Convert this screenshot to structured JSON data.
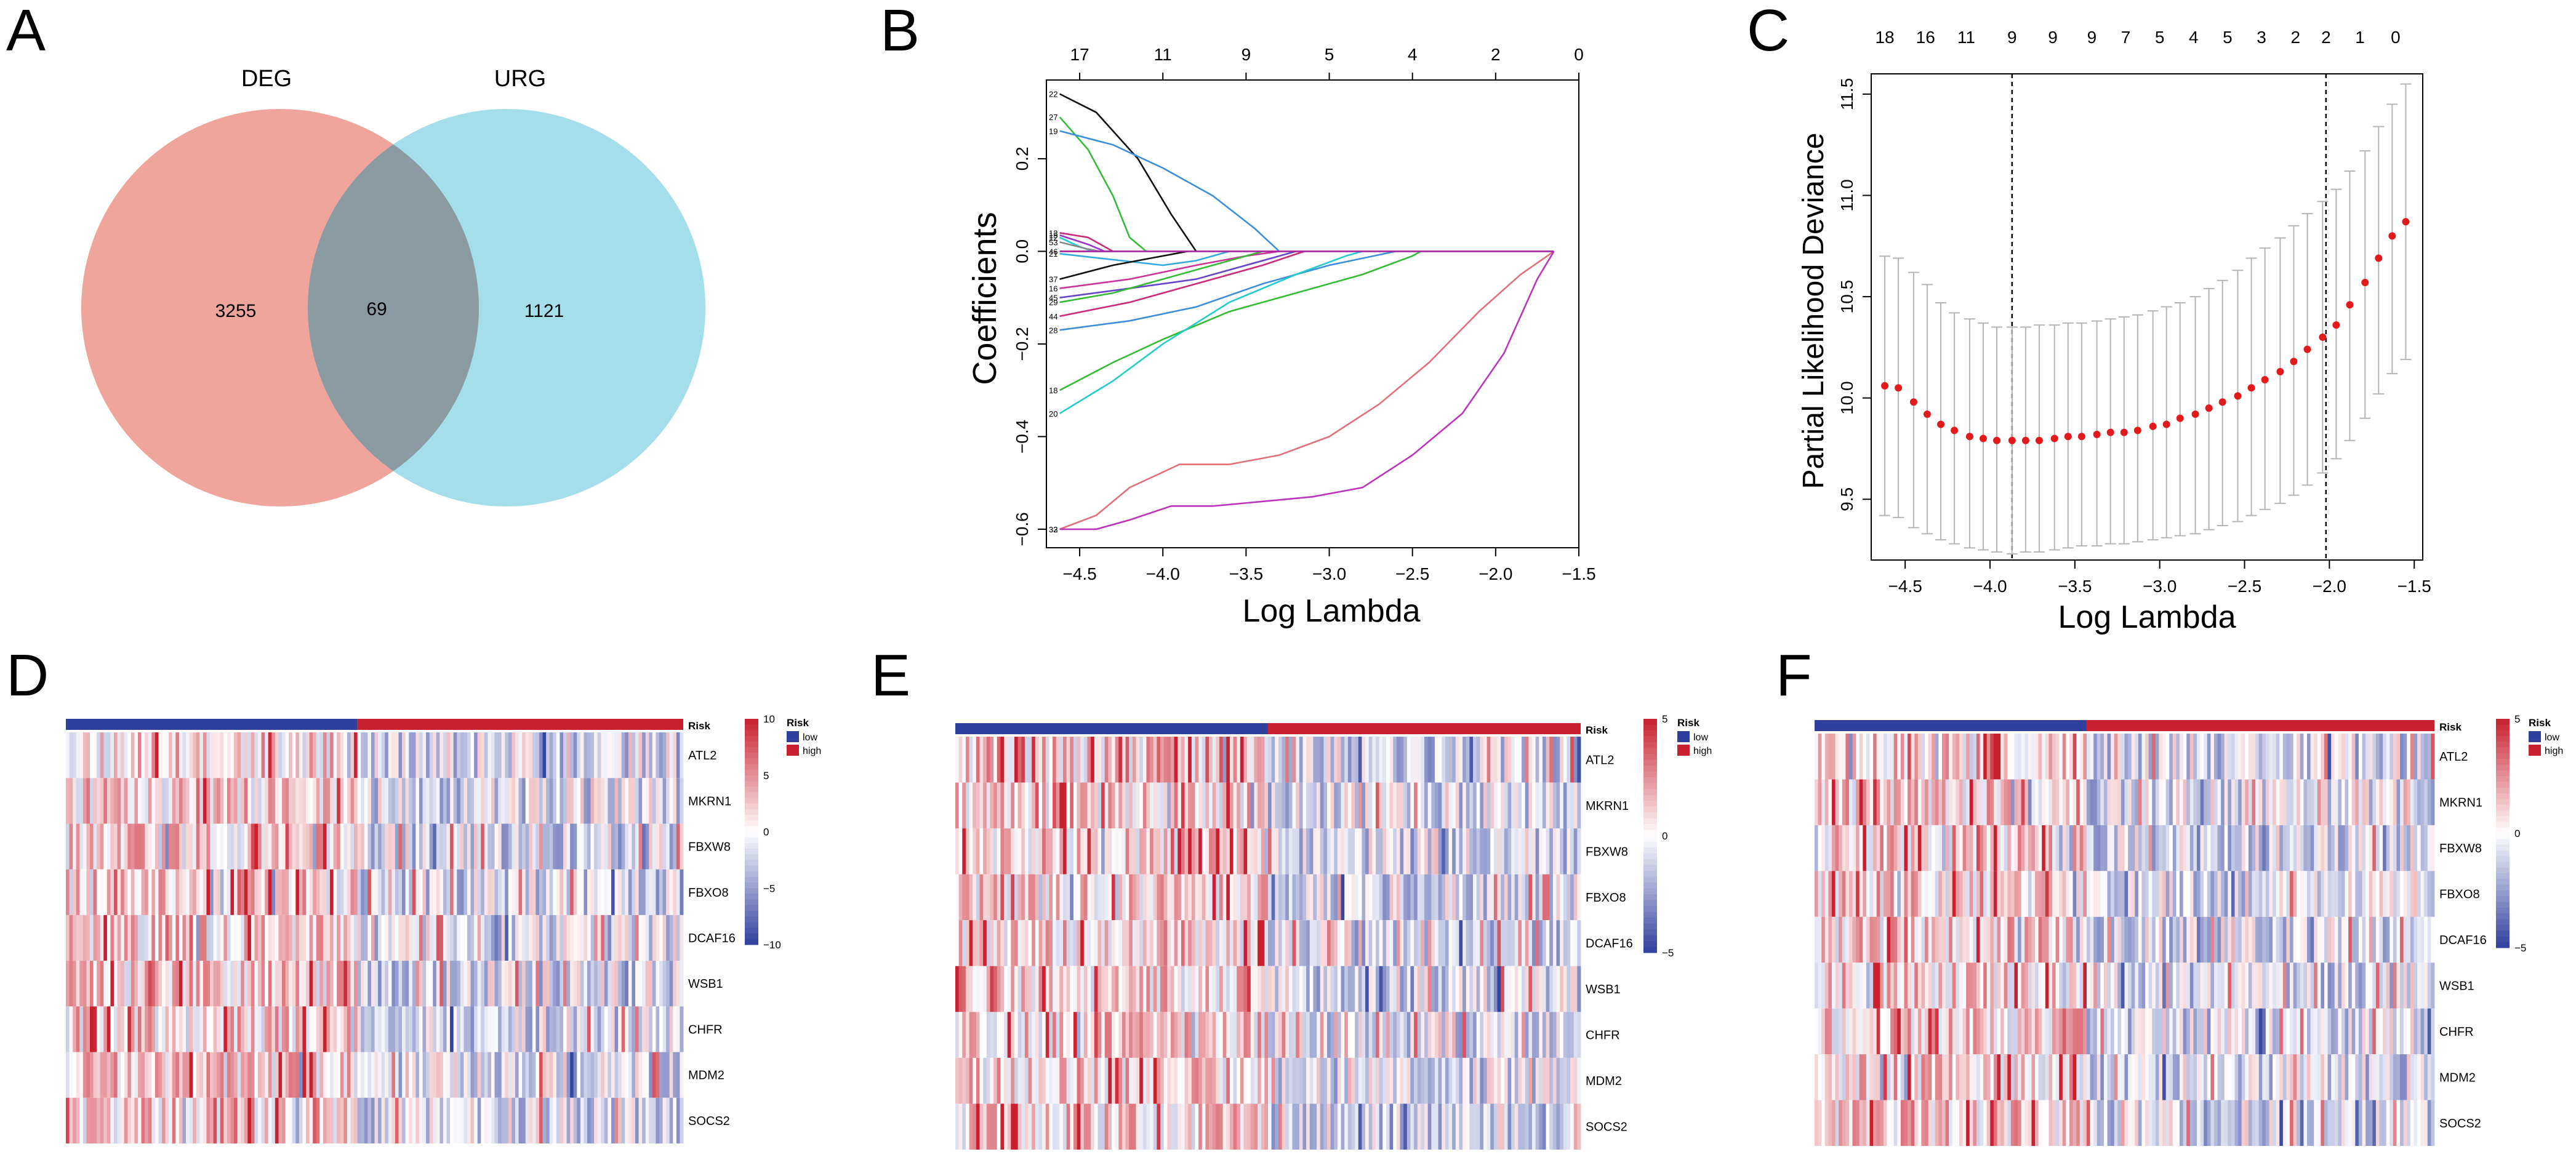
{
  "chart_data": [
    {
      "panel": "A",
      "type": "venn",
      "sets": [
        {
          "name": "DEG",
          "only": 3255,
          "color": "#e9877a"
        },
        {
          "name": "URG",
          "only": 1121,
          "color": "#8fd6e6"
        }
      ],
      "intersection": 69
    },
    {
      "panel": "B",
      "type": "line",
      "title": "",
      "xlabel": "Log Lambda",
      "ylabel": "Coefficients",
      "xlim": [
        -4.7,
        -1.5
      ],
      "ylim": [
        -0.64,
        0.37
      ],
      "xticks": [
        -4.5,
        -4.0,
        -3.5,
        -3.0,
        -2.5,
        -2.0,
        -1.5
      ],
      "xtick_labels": [
        "−4.5",
        "−4.0",
        "−3.5",
        "−3.0",
        "−2.5",
        "−2.0",
        "−1.5"
      ],
      "yticks": [
        -0.6,
        -0.4,
        -0.2,
        0.0,
        0.2
      ],
      "ytick_labels": [
        "−0.6",
        "−0.4",
        "−0.2",
        "0.0",
        "0.2"
      ],
      "top_axis_positions": [
        -4.5,
        -4.0,
        -3.5,
        -3.0,
        -2.5,
        -2.0,
        -1.5
      ],
      "top_axis_labels": [
        "17",
        "11",
        "9",
        "5",
        "4",
        "2",
        "0"
      ],
      "series": [
        {
          "label": "22",
          "color": "#111111",
          "points": [
            [
              -4.62,
              0.34
            ],
            [
              -4.4,
              0.3
            ],
            [
              -4.15,
              0.2
            ],
            [
              -3.95,
              0.08
            ],
            [
              -3.8,
              0.0
            ]
          ]
        },
        {
          "label": "27",
          "color": "#33bb33",
          "points": [
            [
              -4.62,
              0.29
            ],
            [
              -4.45,
              0.22
            ],
            [
              -4.3,
              0.12
            ],
            [
              -4.2,
              0.03
            ],
            [
              -4.1,
              0.0
            ]
          ]
        },
        {
          "label": "19",
          "color": "#3b8fd9",
          "points": [
            [
              -4.62,
              0.26
            ],
            [
              -4.3,
              0.23
            ],
            [
              -4.0,
              0.18
            ],
            [
              -3.7,
              0.12
            ],
            [
              -3.45,
              0.05
            ],
            [
              -3.3,
              0.0
            ]
          ]
        },
        {
          "label": "13",
          "color": "#cc2a7a",
          "points": [
            [
              -4.62,
              0.04
            ],
            [
              -4.45,
              0.03
            ],
            [
              -4.3,
              0.0
            ]
          ]
        },
        {
          "label": "15",
          "color": "#9933cc",
          "points": [
            [
              -4.62,
              0.035
            ],
            [
              -4.45,
              0.015
            ],
            [
              -4.35,
              0.0
            ]
          ]
        },
        {
          "label": "12",
          "color": "#22cccc",
          "points": [
            [
              -4.62,
              0.03
            ],
            [
              -4.5,
              0.01
            ],
            [
              -4.42,
              0.0
            ]
          ]
        },
        {
          "label": "53",
          "color": "#888888",
          "points": [
            [
              -4.62,
              0.02
            ],
            [
              -4.45,
              0.005
            ],
            [
              -4.38,
              0.0
            ]
          ]
        },
        {
          "label": "46",
          "color": "#e07070",
          "points": [
            [
              -4.62,
              0.0
            ],
            [
              -4.3,
              0.0
            ]
          ]
        },
        {
          "label": "21",
          "color": "#33aadd",
          "points": [
            [
              -4.62,
              -0.005
            ],
            [
              -4.0,
              -0.03
            ],
            [
              -3.8,
              -0.02
            ],
            [
              -3.6,
              0.0
            ]
          ]
        },
        {
          "label": "37",
          "color": "#111111",
          "points": [
            [
              -4.62,
              -0.06
            ],
            [
              -4.3,
              -0.03
            ],
            [
              -4.0,
              -0.01
            ],
            [
              -3.85,
              0.0
            ]
          ]
        },
        {
          "label": "16",
          "color": "#cc3399",
          "points": [
            [
              -4.62,
              -0.08
            ],
            [
              -4.2,
              -0.06
            ],
            [
              -3.8,
              -0.03
            ],
            [
              -3.5,
              -0.01
            ],
            [
              -3.3,
              0.0
            ]
          ]
        },
        {
          "label": "45",
          "color": "#6644cc",
          "points": [
            [
              -4.62,
              -0.1
            ],
            [
              -4.2,
              -0.08
            ],
            [
              -3.8,
              -0.06
            ],
            [
              -3.4,
              -0.02
            ],
            [
              -3.2,
              0.0
            ]
          ]
        },
        {
          "label": "29",
          "color": "#33bb33",
          "points": [
            [
              -4.62,
              -0.11
            ],
            [
              -4.3,
              -0.09
            ],
            [
              -4.0,
              -0.06
            ],
            [
              -3.6,
              -0.02
            ],
            [
              -3.4,
              0.0
            ]
          ]
        },
        {
          "label": "44",
          "color": "#cc2a7a",
          "points": [
            [
              -4.62,
              -0.14
            ],
            [
              -4.2,
              -0.11
            ],
            [
              -3.8,
              -0.07
            ],
            [
              -3.4,
              -0.03
            ],
            [
              -3.15,
              0.0
            ]
          ]
        },
        {
          "label": "28",
          "color": "#3b8fd9",
          "points": [
            [
              -4.62,
              -0.17
            ],
            [
              -4.2,
              -0.15
            ],
            [
              -3.8,
              -0.12
            ],
            [
              -3.4,
              -0.07
            ],
            [
              -3.0,
              -0.03
            ],
            [
              -2.6,
              0.0
            ]
          ]
        },
        {
          "label": "18",
          "color": "#33bb33",
          "points": [
            [
              -4.62,
              -0.3
            ],
            [
              -4.3,
              -0.24
            ],
            [
              -4.0,
              -0.19
            ],
            [
              -3.6,
              -0.13
            ],
            [
              -3.2,
              -0.09
            ],
            [
              -2.8,
              -0.05
            ],
            [
              -2.5,
              -0.01
            ],
            [
              -2.45,
              0.0
            ]
          ]
        },
        {
          "label": "20",
          "color": "#22cccc",
          "points": [
            [
              -4.62,
              -0.35
            ],
            [
              -4.3,
              -0.28
            ],
            [
              -4.0,
              -0.2
            ],
            [
              -3.6,
              -0.11
            ],
            [
              -3.2,
              -0.05
            ],
            [
              -2.9,
              -0.01
            ],
            [
              -2.8,
              0.0
            ]
          ]
        },
        {
          "label": "32",
          "color": "#e0707a",
          "points": [
            [
              -4.62,
              -0.6
            ],
            [
              -4.4,
              -0.57
            ],
            [
              -4.2,
              -0.51
            ],
            [
              -3.9,
              -0.46
            ],
            [
              -3.6,
              -0.46
            ],
            [
              -3.3,
              -0.44
            ],
            [
              -3.0,
              -0.4
            ],
            [
              -2.7,
              -0.33
            ],
            [
              -2.4,
              -0.24
            ],
            [
              -2.1,
              -0.13
            ],
            [
              -1.85,
              -0.05
            ],
            [
              -1.65,
              0.0
            ]
          ]
        },
        {
          "label": "33",
          "color": "#bb33bb",
          "points": [
            [
              -4.62,
              -0.6
            ],
            [
              -4.4,
              -0.6
            ],
            [
              -4.2,
              -0.58
            ],
            [
              -3.95,
              -0.55
            ],
            [
              -3.7,
              -0.55
            ],
            [
              -3.4,
              -0.54
            ],
            [
              -3.1,
              -0.53
            ],
            [
              -2.8,
              -0.51
            ],
            [
              -2.5,
              -0.44
            ],
            [
              -2.2,
              -0.35
            ],
            [
              -1.95,
              -0.22
            ],
            [
              -1.75,
              -0.06
            ],
            [
              -1.65,
              0.0
            ]
          ]
        },
        {
          "label": "",
          "color": "#aa22aa",
          "points": [
            [
              -1.65,
              0.0
            ],
            [
              -4.62,
              0.0
            ]
          ]
        }
      ]
    },
    {
      "panel": "C",
      "type": "scatter",
      "title": "",
      "xlabel": "Log Lambda",
      "ylabel": "Partial Likelihood Deviance",
      "xlim": [
        -4.7,
        -1.45
      ],
      "ylim": [
        9.2,
        11.6
      ],
      "xticks": [
        -4.5,
        -4.0,
        -3.5,
        -3.0,
        -2.5,
        -2.0,
        -1.5
      ],
      "xtick_labels": [
        "−4.5",
        "−4.0",
        "−3.5",
        "−3.0",
        "−2.5",
        "−2.0",
        "−1.5"
      ],
      "yticks": [
        9.5,
        10.0,
        10.5,
        11.0,
        11.5
      ],
      "ytick_labels": [
        "9.5",
        "10.0",
        "10.5",
        "11.0",
        "11.5"
      ],
      "top_axis_positions": [
        -4.62,
        -4.38,
        -4.14,
        -3.87,
        -3.63,
        -3.4,
        -3.2,
        -3.0,
        -2.8,
        -2.6,
        -2.4,
        -2.2,
        -2.02,
        -1.82,
        -1.61
      ],
      "top_axis_labels": [
        "18",
        "16",
        "11",
        "9",
        "9",
        "9",
        "7",
        "5",
        "4",
        "5",
        "3",
        "2",
        "2",
        "1",
        "0"
      ],
      "vlines": [
        -3.87,
        -2.02
      ],
      "points": [
        {
          "x": -4.62,
          "y": 10.06,
          "lo": 9.42,
          "hi": 10.7
        },
        {
          "x": -4.54,
          "y": 10.05,
          "lo": 9.41,
          "hi": 10.69
        },
        {
          "x": -4.45,
          "y": 9.98,
          "lo": 9.36,
          "hi": 10.62
        },
        {
          "x": -4.37,
          "y": 9.92,
          "lo": 9.33,
          "hi": 10.56
        },
        {
          "x": -4.29,
          "y": 9.87,
          "lo": 9.3,
          "hi": 10.47
        },
        {
          "x": -4.21,
          "y": 9.84,
          "lo": 9.28,
          "hi": 10.42
        },
        {
          "x": -4.12,
          "y": 9.81,
          "lo": 9.26,
          "hi": 10.39
        },
        {
          "x": -4.04,
          "y": 9.8,
          "lo": 9.25,
          "hi": 10.37
        },
        {
          "x": -3.96,
          "y": 9.79,
          "lo": 9.24,
          "hi": 10.35
        },
        {
          "x": -3.87,
          "y": 9.79,
          "lo": 9.23,
          "hi": 10.35
        },
        {
          "x": -3.79,
          "y": 9.79,
          "lo": 9.24,
          "hi": 10.35
        },
        {
          "x": -3.71,
          "y": 9.79,
          "lo": 9.24,
          "hi": 10.36
        },
        {
          "x": -3.62,
          "y": 9.8,
          "lo": 9.25,
          "hi": 10.36
        },
        {
          "x": -3.54,
          "y": 9.81,
          "lo": 9.26,
          "hi": 10.37
        },
        {
          "x": -3.46,
          "y": 9.81,
          "lo": 9.27,
          "hi": 10.37
        },
        {
          "x": -3.37,
          "y": 9.82,
          "lo": 9.27,
          "hi": 10.38
        },
        {
          "x": -3.29,
          "y": 9.83,
          "lo": 9.28,
          "hi": 10.39
        },
        {
          "x": -3.21,
          "y": 9.83,
          "lo": 9.28,
          "hi": 10.4
        },
        {
          "x": -3.13,
          "y": 9.84,
          "lo": 9.29,
          "hi": 10.41
        },
        {
          "x": -3.04,
          "y": 9.86,
          "lo": 9.3,
          "hi": 10.43
        },
        {
          "x": -2.96,
          "y": 9.87,
          "lo": 9.31,
          "hi": 10.45
        },
        {
          "x": -2.88,
          "y": 9.9,
          "lo": 9.32,
          "hi": 10.47
        },
        {
          "x": -2.79,
          "y": 9.92,
          "lo": 9.33,
          "hi": 10.5
        },
        {
          "x": -2.71,
          "y": 9.95,
          "lo": 9.35,
          "hi": 10.54
        },
        {
          "x": -2.63,
          "y": 9.98,
          "lo": 9.37,
          "hi": 10.58
        },
        {
          "x": -2.54,
          "y": 10.01,
          "lo": 9.39,
          "hi": 10.63
        },
        {
          "x": -2.46,
          "y": 10.05,
          "lo": 9.42,
          "hi": 10.69
        },
        {
          "x": -2.38,
          "y": 10.09,
          "lo": 9.45,
          "hi": 10.74
        },
        {
          "x": -2.29,
          "y": 10.13,
          "lo": 9.48,
          "hi": 10.79
        },
        {
          "x": -2.21,
          "y": 10.18,
          "lo": 9.52,
          "hi": 10.85
        },
        {
          "x": -2.13,
          "y": 10.24,
          "lo": 9.57,
          "hi": 10.91
        },
        {
          "x": -2.04,
          "y": 10.3,
          "lo": 9.63,
          "hi": 10.97
        },
        {
          "x": -1.96,
          "y": 10.36,
          "lo": 9.7,
          "hi": 11.03
        },
        {
          "x": -1.88,
          "y": 10.46,
          "lo": 9.79,
          "hi": 11.12
        },
        {
          "x": -1.79,
          "y": 10.57,
          "lo": 9.9,
          "hi": 11.22
        },
        {
          "x": -1.71,
          "y": 10.69,
          "lo": 10.02,
          "hi": 11.34
        },
        {
          "x": -1.63,
          "y": 10.8,
          "lo": 10.12,
          "hi": 11.45
        },
        {
          "x": -1.55,
          "y": 10.87,
          "lo": 10.19,
          "hi": 11.55
        }
      ]
    },
    {
      "panel": "D",
      "type": "heatmap",
      "genes": [
        "ATL2",
        "MKRN1",
        "FBXW8",
        "FBXO8",
        "DCAF16",
        "WSB1",
        "CHFR",
        "MDM2",
        "SOCS2"
      ],
      "annotation_title": "Risk",
      "risk_groups": [
        "low",
        "high"
      ],
      "risk_colors": [
        "#2f3f9e",
        "#c8202e"
      ],
      "low_fraction": 0.47,
      "colorbar_ticks": [
        10,
        5,
        0,
        -5,
        -10
      ],
      "colorbar_labels": [
        "10",
        "5",
        "0",
        "−5",
        "−10"
      ],
      "samples": 180,
      "seed": 11
    },
    {
      "panel": "E",
      "type": "heatmap",
      "genes": [
        "ATL2",
        "MKRN1",
        "FBXW8",
        "FBXO8",
        "DCAF16",
        "WSB1",
        "CHFR",
        "MDM2",
        "SOCS2"
      ],
      "annotation_title": "Risk",
      "risk_groups": [
        "low",
        "high"
      ],
      "risk_colors": [
        "#2f3f9e",
        "#c8202e"
      ],
      "low_fraction": 0.5,
      "colorbar_ticks": [
        5,
        0,
        -5
      ],
      "colorbar_labels": [
        "5",
        "0",
        "−5"
      ],
      "samples": 180,
      "seed": 23
    },
    {
      "panel": "F",
      "type": "heatmap",
      "genes": [
        "ATL2",
        "MKRN1",
        "FBXW8",
        "FBXO8",
        "DCAF16",
        "WSB1",
        "CHFR",
        "MDM2",
        "SOCS2"
      ],
      "annotation_title": "Risk",
      "risk_groups": [
        "low",
        "high"
      ],
      "risk_colors": [
        "#2f3f9e",
        "#c8202e"
      ],
      "low_fraction": 0.44,
      "colorbar_ticks": [
        5,
        0,
        -5
      ],
      "colorbar_labels": [
        "5",
        "0",
        "−5"
      ],
      "samples": 180,
      "seed": 37
    }
  ],
  "panel_labels": [
    "A",
    "B",
    "C",
    "D",
    "E",
    "F"
  ]
}
